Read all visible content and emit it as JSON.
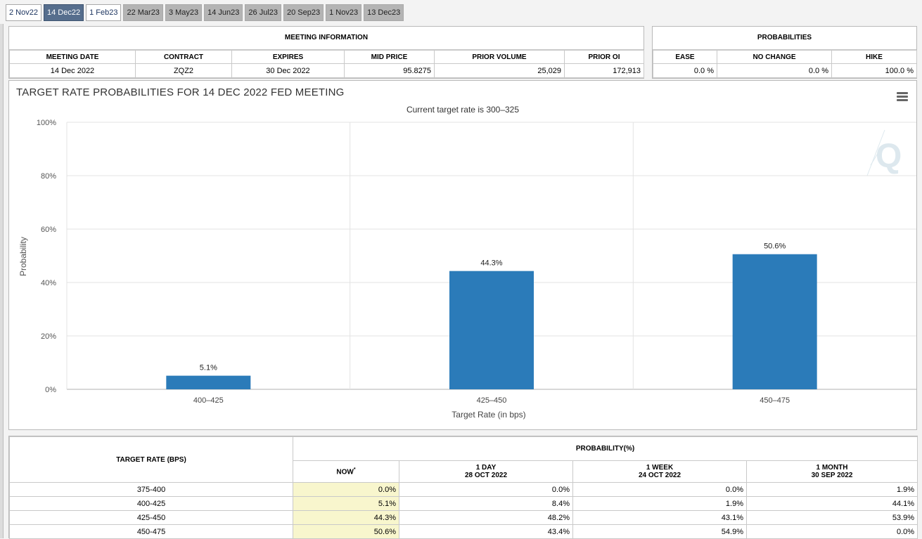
{
  "tabs": [
    {
      "label": "2 Nov22",
      "state": "white"
    },
    {
      "label": "14 Dec22",
      "state": "active"
    },
    {
      "label": "1 Feb23",
      "state": "white"
    },
    {
      "label": "22 Mar23",
      "state": "grey"
    },
    {
      "label": "3 May23",
      "state": "grey"
    },
    {
      "label": "14 Jun23",
      "state": "grey"
    },
    {
      "label": "26 Jul23",
      "state": "grey"
    },
    {
      "label": "20 Sep23",
      "state": "grey"
    },
    {
      "label": "1 Nov23",
      "state": "grey"
    },
    {
      "label": "13 Dec23",
      "state": "grey"
    }
  ],
  "meeting_info": {
    "caption": "MEETING INFORMATION",
    "headers": [
      "MEETING DATE",
      "CONTRACT",
      "EXPIRES",
      "MID PRICE",
      "PRIOR VOLUME",
      "PRIOR OI"
    ],
    "row": [
      "14 Dec 2022",
      "ZQZ2",
      "30 Dec 2022",
      "95.8275",
      "25,029",
      "172,913"
    ]
  },
  "probabilities": {
    "caption": "PROBABILITIES",
    "headers": [
      "EASE",
      "NO CHANGE",
      "HIKE"
    ],
    "row": [
      "0.0 %",
      "0.0 %",
      "100.0 %"
    ]
  },
  "chart": {
    "title": "TARGET RATE PROBABILITIES FOR 14 DEC 2022 FED MEETING",
    "subtitle": "Current target rate is 300–325",
    "menu_icon": "hamburger-menu-icon",
    "watermark_icon": "q-watermark-icon"
  },
  "chart_data": {
    "type": "bar",
    "title": "TARGET RATE PROBABILITIES FOR 14 DEC 2022 FED MEETING",
    "subtitle": "Current target rate is 300–325",
    "categories": [
      "400–425",
      "425–450",
      "450–475"
    ],
    "values": [
      5.1,
      44.3,
      50.6
    ],
    "data_labels": [
      "5.1%",
      "44.3%",
      "50.6%"
    ],
    "xlabel": "Target Rate (in bps)",
    "ylabel": "Probability",
    "ylim": [
      0,
      100
    ],
    "yticks": [
      0,
      20,
      40,
      60,
      80,
      100
    ],
    "ytick_labels": [
      "0%",
      "20%",
      "40%",
      "60%",
      "80%",
      "100%"
    ],
    "grid": true,
    "bar_color": "#2b7bb9"
  },
  "prob_table": {
    "row_header": "TARGET RATE (BPS)",
    "group_header": "PROBABILITY(%)",
    "columns": [
      {
        "line1": "NOW",
        "line2": ""
      },
      {
        "line1": "1 DAY",
        "line2": "28 OCT 2022"
      },
      {
        "line1": "1 WEEK",
        "line2": "24 OCT 2022"
      },
      {
        "line1": "1 MONTH",
        "line2": "30 SEP 2022"
      }
    ],
    "now_marker": "*",
    "rows": [
      {
        "rate": "375-400",
        "values": [
          "0.0%",
          "0.0%",
          "0.0%",
          "1.9%"
        ]
      },
      {
        "rate": "400-425",
        "values": [
          "5.1%",
          "8.4%",
          "1.9%",
          "44.1%"
        ]
      },
      {
        "rate": "425-450",
        "values": [
          "44.3%",
          "48.2%",
          "43.1%",
          "53.9%"
        ]
      },
      {
        "rate": "450-475",
        "values": [
          "50.6%",
          "43.4%",
          "54.9%",
          "0.0%"
        ]
      }
    ]
  }
}
